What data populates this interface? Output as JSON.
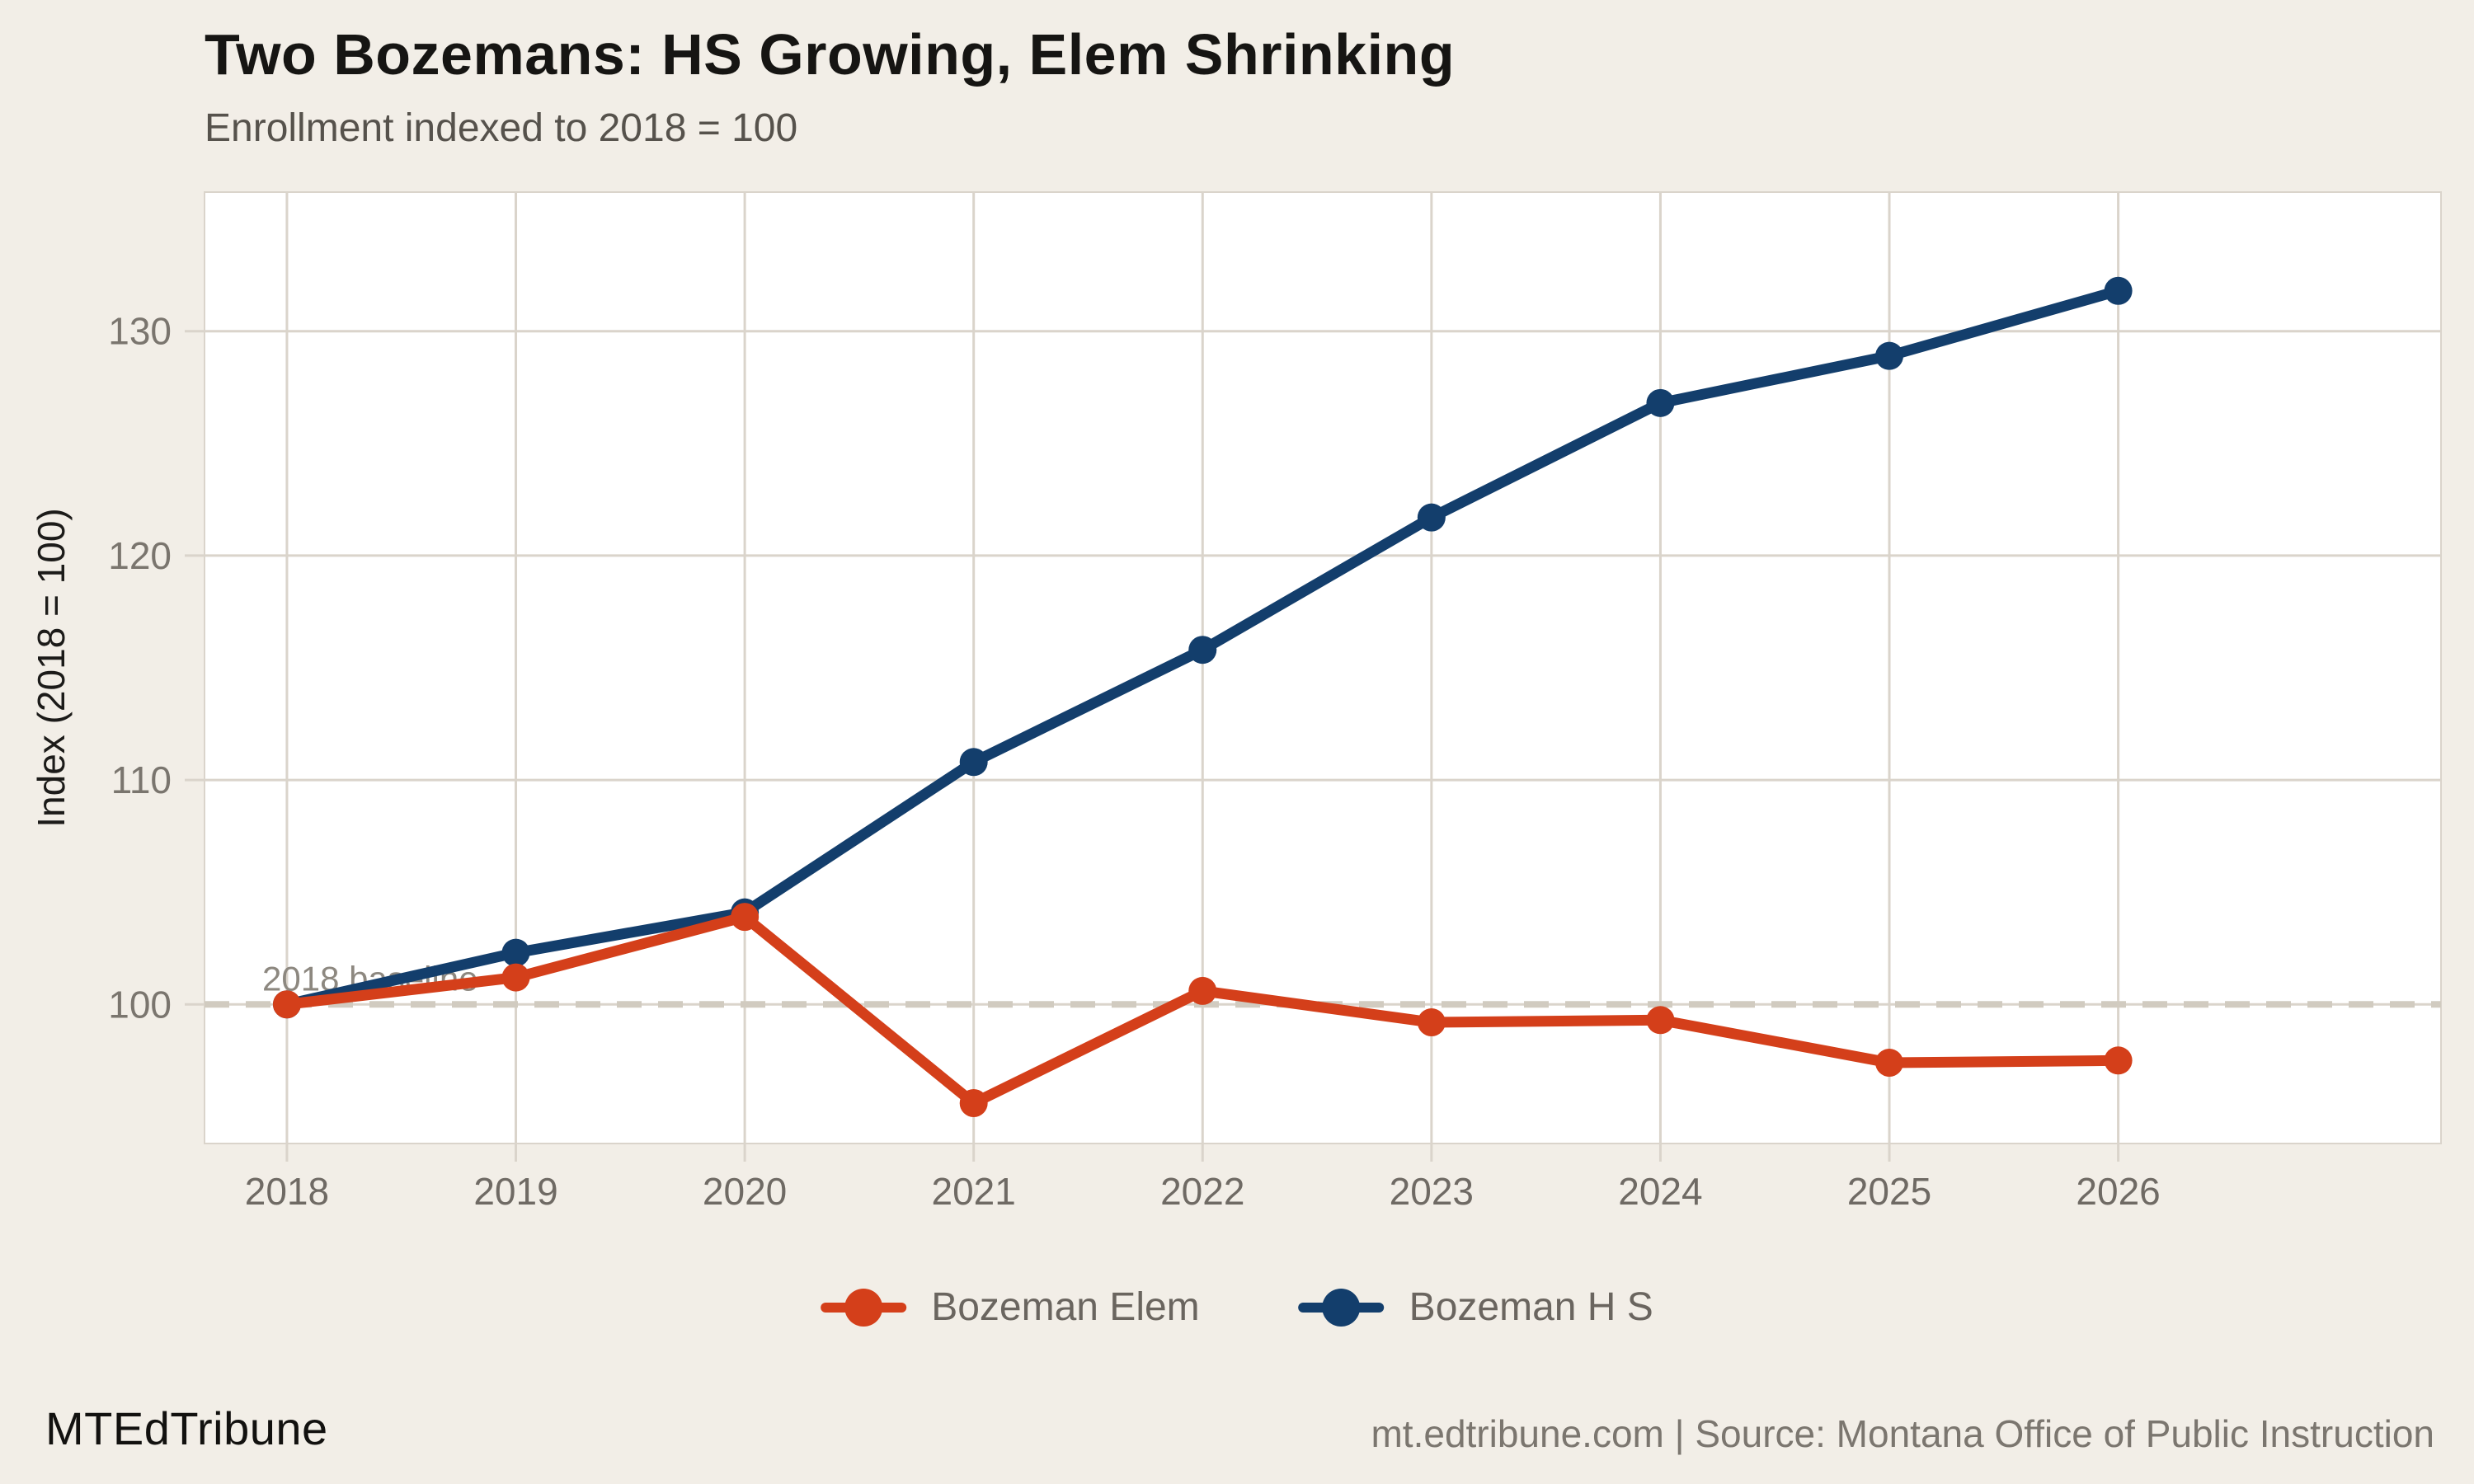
{
  "chart_data": {
    "type": "line",
    "title": "Two Bozemans: HS Growing, Elem Shrinking",
    "subtitle": "Enrollment indexed to 2018 = 100",
    "ylabel": "Index (2018 = 100)",
    "x": [
      2018,
      2019,
      2020,
      2021,
      2022,
      2023,
      2024,
      2025,
      2026
    ],
    "series": [
      {
        "name": "Bozeman Elem",
        "color": "#d43f1a",
        "values": [
          100,
          101.2,
          103.9,
          95.6,
          100.6,
          99.2,
          99.3,
          97.4,
          97.5
        ]
      },
      {
        "name": "Bozeman H S",
        "color": "#133e6c",
        "values": [
          100,
          102.3,
          104.1,
          110.8,
          115.8,
          121.7,
          126.8,
          128.9,
          131.8
        ]
      }
    ],
    "yticks": [
      100,
      110,
      120,
      130
    ],
    "xlim": [
      2017.64,
      2027.41
    ],
    "ylim": [
      93.8,
      136.2
    ],
    "grid": true,
    "legend_position": "bottom",
    "baseline": {
      "value": 100,
      "label": "2018 baseline"
    }
  },
  "colors": {
    "background": "#f2eee7",
    "plot_background": "#ffffff",
    "gridline": "#dad4cb",
    "baseline_dash": "#d1cbc0",
    "ytick_label": "#7a756e",
    "xtick_label": "#6f6a64",
    "annotation": "#8d8880",
    "axis_title": "#1c1b19"
  },
  "footer": {
    "brand": "MTEdTribune",
    "source": "mt.edtribune.com | Source: Montana Office of Public Instruction"
  }
}
